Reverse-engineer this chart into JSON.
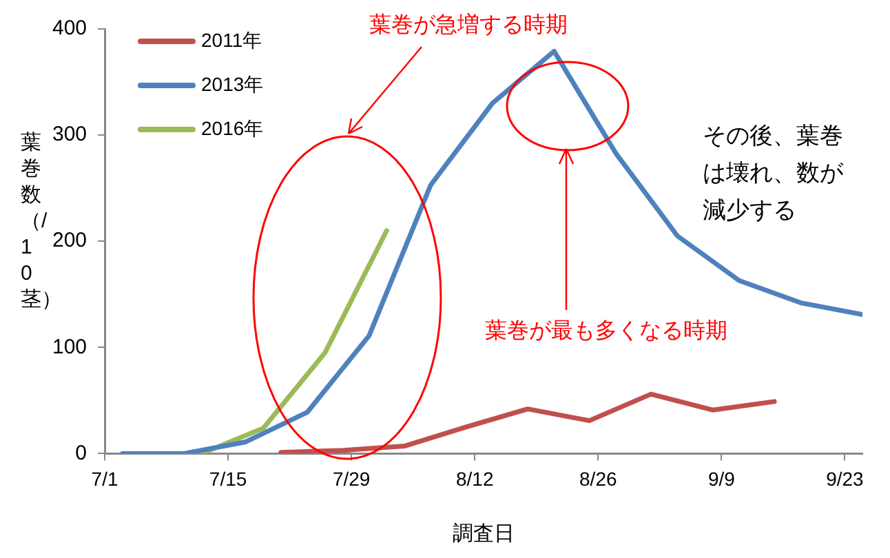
{
  "chart_data": {
    "type": "line",
    "xlabel": "調査日",
    "ylabel": "葉巻数（/10茎）",
    "xlim": [
      "--07-01",
      "--09-25"
    ],
    "xticks": [
      {
        "value": "--07-01",
        "label": "7/1"
      },
      {
        "value": "--07-15",
        "label": "7/15"
      },
      {
        "value": "--07-29",
        "label": "7/29"
      },
      {
        "value": "--08-12",
        "label": "8/12"
      },
      {
        "value": "--08-26",
        "label": "8/26"
      },
      {
        "value": "--09-09",
        "label": "9/9"
      },
      {
        "value": "--09-23",
        "label": "9/23"
      }
    ],
    "ylim": [
      0,
      400
    ],
    "yticks": [
      0,
      100,
      200,
      300,
      400
    ],
    "grid": false,
    "legend": "top left",
    "marker": "none",
    "line_style": "solid",
    "series": [
      {
        "name": "2011年",
        "color": "#c0504d",
        "x": [
          "--07-21",
          "--07-28",
          "--08-04",
          "--08-11",
          "--08-18",
          "--08-25",
          "--09-01",
          "--09-08",
          "--09-15"
        ],
        "values": [
          1,
          3,
          7,
          25,
          42,
          31,
          56,
          41,
          49
        ]
      },
      {
        "name": "2013年",
        "color": "#4f81bd",
        "x": [
          "--07-03",
          "--07-10",
          "--07-17",
          "--07-24",
          "--07-31",
          "--08-07",
          "--08-14",
          "--08-21",
          "--08-28",
          "--09-04",
          "--09-11",
          "--09-18",
          "--09-25"
        ],
        "values": [
          0,
          0,
          11,
          39,
          111,
          253,
          330,
          379,
          283,
          205,
          163,
          142,
          131
        ]
      },
      {
        "name": "2016年",
        "color": "#9bbb59",
        "x": [
          "--07-05",
          "--07-12",
          "--07-19",
          "--07-26",
          "--08-02"
        ],
        "values": [
          0,
          0,
          24,
          95,
          210
        ]
      }
    ],
    "annotations": [
      "葉巻が急増する時期",
      "葉巻が最も多くなる時期",
      "その後、葉巻は壊れ、数が減少する"
    ]
  }
}
